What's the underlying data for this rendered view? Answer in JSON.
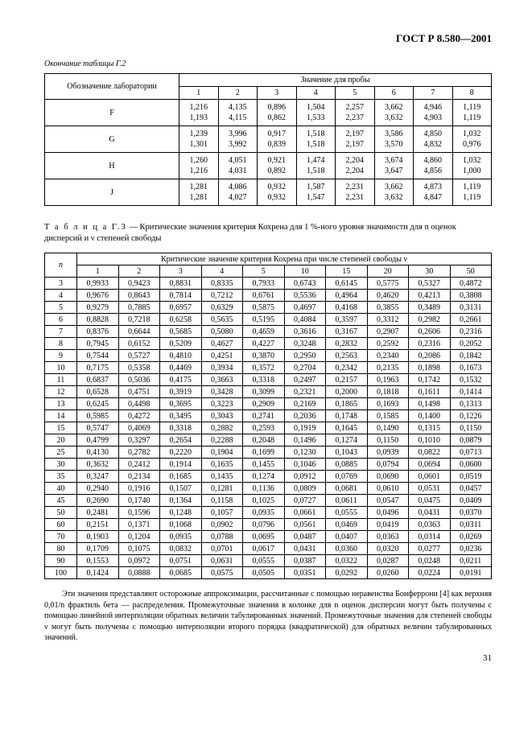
{
  "document_id": "ГОСТ Р 8.580—2001",
  "page_number": "31",
  "table_g2": {
    "continuation_caption": "Окончание таблицы Г.2",
    "lab_header": "Обозначение лаборатории",
    "sample_header": "Значение для пробы",
    "sample_cols": [
      "1",
      "2",
      "3",
      "4",
      "5",
      "6",
      "7",
      "8"
    ],
    "rows": [
      {
        "lab": "F",
        "v": [
          [
            "1,216",
            "1,193"
          ],
          [
            "4,135",
            "4,115"
          ],
          [
            "0,896",
            "0,862"
          ],
          [
            "1,504",
            "1,533"
          ],
          [
            "2,257",
            "2,237"
          ],
          [
            "3,662",
            "3,632"
          ],
          [
            "4,946",
            "4,903"
          ],
          [
            "1,119",
            "1,119"
          ]
        ]
      },
      {
        "lab": "G",
        "v": [
          [
            "1,239",
            "1,301"
          ],
          [
            "3,996",
            "3,992"
          ],
          [
            "0,917",
            "0,839"
          ],
          [
            "1,518",
            "1,518"
          ],
          [
            "2,197",
            "2,197"
          ],
          [
            "3,586",
            "3,570"
          ],
          [
            "4,850",
            "4,832"
          ],
          [
            "1,032",
            "0,976"
          ]
        ]
      },
      {
        "lab": "H",
        "v": [
          [
            "1,260",
            "1,216"
          ],
          [
            "4,051",
            "4,031"
          ],
          [
            "0,921",
            "0,892"
          ],
          [
            "1,474",
            "1,518"
          ],
          [
            "2,204",
            "2,204"
          ],
          [
            "3,674",
            "3,647"
          ],
          [
            "4,860",
            "4,856"
          ],
          [
            "1,032",
            "1,000"
          ]
        ]
      },
      {
        "lab": "J",
        "v": [
          [
            "1,281",
            "1,281"
          ],
          [
            "4,086",
            "4,027"
          ],
          [
            "0,932",
            "0,932"
          ],
          [
            "1,587",
            "1,547"
          ],
          [
            "2,231",
            "2,231"
          ],
          [
            "3,662",
            "3,632"
          ],
          [
            "4,873",
            "4,847"
          ],
          [
            "1,119",
            "1,119"
          ]
        ]
      }
    ]
  },
  "table_g3": {
    "caption_label": "Т а б л и ц а  Г.3",
    "caption_text": " — Критические значения критерия Кохрена для 1 %-ного уровня значимости для n оценок дисперсий и ν степеней свободы",
    "n_header": "n",
    "top_header": "Критические значение критерия Кохрена при числе степеней свободы  ν",
    "v_cols": [
      "1",
      "2",
      "3",
      "4",
      "5",
      "10",
      "15",
      "20",
      "30",
      "50"
    ],
    "rows": [
      [
        "3",
        "0,9933",
        "0,9423",
        "0,8831",
        "0,8335",
        "0,7933",
        "0,6743",
        "0,6145",
        "0,5775",
        "0,5327",
        "0,4872"
      ],
      [
        "4",
        "0,9676",
        "0,8643",
        "0,7814",
        "0,7212",
        "0,6761",
        "0,5536",
        "0,4964",
        "0,4620",
        "0,4213",
        "0,3808"
      ],
      [
        "5",
        "0,9279",
        "0,7885",
        "0,6957",
        "0,6329",
        "0,5875",
        "0,4697",
        "0,4168",
        "0,3855",
        "0,3489",
        "0,3131"
      ],
      [
        "6",
        "0,8828",
        "0,7218",
        "0,6258",
        "0,5635",
        "0,5195",
        "0,4084",
        "0,3597",
        "0,3312",
        "0,2982",
        "0,2661"
      ],
      [
        "7",
        "0,8376",
        "0,6644",
        "0,5685",
        "0,5080",
        "0,4659",
        "0,3616",
        "0,3167",
        "0,2907",
        "0,2606",
        "0,2316"
      ],
      [
        "8",
        "0,7945",
        "0,6152",
        "0,5209",
        "0,4627",
        "0,4227",
        "0,3248",
        "0,2832",
        "0,2592",
        "0,2316",
        "0,2052"
      ],
      [
        "9",
        "0,7544",
        "0,5727",
        "0,4810",
        "0,4251",
        "0,3870",
        "0,2950",
        "0,2563",
        "0,2340",
        "0,2086",
        "0,1842"
      ],
      [
        "10",
        "0,7175",
        "0,5358",
        "0,4469",
        "0,3934",
        "0,3572",
        "0,2704",
        "0,2342",
        "0,2135",
        "0,1898",
        "0,1673"
      ],
      [
        "11",
        "0,6837",
        "0,5036",
        "0,4175",
        "0,3663",
        "0,3318",
        "0,2497",
        "0,2157",
        "0,1963",
        "0,1742",
        "0,1532"
      ],
      [
        "12",
        "0,6528",
        "0,4751",
        "0,3919",
        "0,3428",
        "0,3099",
        "0,2321",
        "0,2000",
        "0,1818",
        "0,1611",
        "0,1414"
      ],
      [
        "13",
        "0,6245",
        "0,4498",
        "0,3695",
        "0,3223",
        "0,2909",
        "0,2169",
        "0,1865",
        "0,1693",
        "0,1498",
        "0,1313"
      ],
      [
        "14",
        "0,5985",
        "0,4272",
        "0,3495",
        "0,3043",
        "0,2741",
        "0,2036",
        "0,1748",
        "0,1585",
        "0,1400",
        "0,1226"
      ],
      [
        "15",
        "0,5747",
        "0,4069",
        "0,3318",
        "0,2882",
        "0,2593",
        "0,1919",
        "0,1645",
        "0,1490",
        "0,1315",
        "0,1150"
      ],
      [
        "20",
        "0,4799",
        "0,3297",
        "0,2654",
        "0,2288",
        "0,2048",
        "0,1496",
        "0,1274",
        "0,1150",
        "0,1010",
        "0,0879"
      ],
      [
        "25",
        "0,4130",
        "0,2782",
        "0,2220",
        "0,1904",
        "0,1699",
        "0,1230",
        "0,1043",
        "0,0939",
        "0,0822",
        "0,0713"
      ],
      [
        "30",
        "0,3632",
        "0,2412",
        "0,1914",
        "0,1635",
        "0,1455",
        "0,1046",
        "0,0885",
        "0,0794",
        "0,0694",
        "0,0600"
      ],
      [
        "35",
        "0,3247",
        "0,2134",
        "0,1685",
        "0,1435",
        "0,1274",
        "0,0912",
        "0,0769",
        "0,0690",
        "0,0601",
        "0,0519"
      ],
      [
        "40",
        "0,2940",
        "0,1916",
        "0,1507",
        "0,1281",
        "0,1136",
        "0,0809",
        "0,0681",
        "0,0610",
        "0,0531",
        "0,0457"
      ],
      [
        "45",
        "0,2690",
        "0,1740",
        "0,1364",
        "0,1158",
        "0,1025",
        "0,0727",
        "0,0611",
        "0,0547",
        "0,0475",
        "0,0409"
      ],
      [
        "50",
        "0,2481",
        "0,1596",
        "0,1248",
        "0,1057",
        "0,0935",
        "0,0661",
        "0,0555",
        "0,0496",
        "0,0431",
        "0,0370"
      ],
      [
        "60",
        "0,2151",
        "0,1371",
        "0,1068",
        "0,0902",
        "0,0796",
        "0,0561",
        "0,0469",
        "0,0419",
        "0,0363",
        "0,0311"
      ],
      [
        "70",
        "0,1903",
        "0,1204",
        "0,0935",
        "0,0788",
        "0,0695",
        "0,0487",
        "0,0407",
        "0,0363",
        "0,0314",
        "0,0269"
      ],
      [
        "80",
        "0,1709",
        "0,1075",
        "0,0832",
        "0,0701",
        "0,0617",
        "0,0431",
        "0,0360",
        "0,0320",
        "0,0277",
        "0,0236"
      ],
      [
        "90",
        "0,1553",
        "0,0972",
        "0,0751",
        "0,0631",
        "0,0555",
        "0,0387",
        "0,0322",
        "0,0287",
        "0,0248",
        "0,0211"
      ],
      [
        "100",
        "0,1424",
        "0,0888",
        "0,0685",
        "0,0575",
        "0,0505",
        "0,0351",
        "0,0292",
        "0,0260",
        "0,0224",
        "0,0191"
      ]
    ]
  },
  "footer_paragraph": "Эти значения представляют осторожные аппроксимации, рассчитанные с помощью неравенства Бонферрони [4] как верхняя 0,01/n фрактиль бета — распределения. Промежуточные значения в колонке для n оценок дисперсии могут быть получены с помощью линейной интерполяции обратных величин табулированных значений. Промежуточные значения для степеней свободы ν могут быть получены с помощью интерполяции второго порядка (квадратической) для обратных величин табулированных значений."
}
